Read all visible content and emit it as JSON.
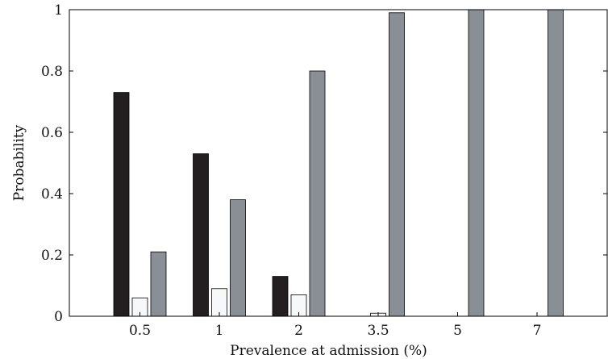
{
  "chart_data": {
    "type": "bar",
    "xlabel": "Prevalence at admission (%)",
    "ylabel": "Probability",
    "categories": [
      "0.5",
      "1",
      "2",
      "3.5",
      "5",
      "7"
    ],
    "ylim": [
      0,
      1
    ],
    "yticks": [
      "0",
      "0.2",
      "0.4",
      "0.6",
      "0.8",
      "1"
    ],
    "grid": false,
    "series": [
      {
        "values": [
          0.73,
          0.53,
          0.13,
          0.0,
          0.0,
          0.0
        ],
        "color": "#231f20"
      },
      {
        "values": [
          0.06,
          0.09,
          0.07,
          0.01,
          0.0,
          0.0
        ],
        "color": "#f7f8fa"
      },
      {
        "values": [
          0.21,
          0.38,
          0.8,
          0.99,
          1.0,
          1.0
        ],
        "color": "#8a8f96"
      }
    ]
  }
}
